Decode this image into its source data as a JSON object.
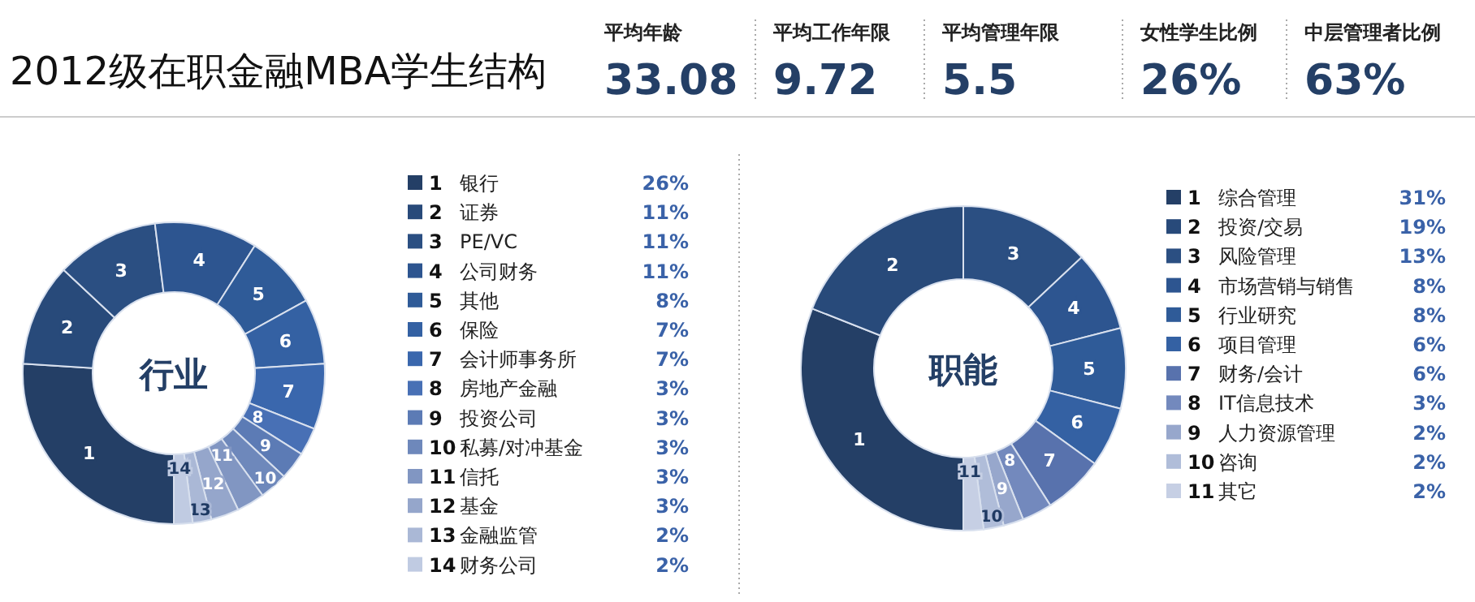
{
  "chart_data": [
    {
      "type": "other",
      "title": "2012级在职金融MBA学生结构",
      "categories": [
        "平均年龄",
        "平均工作年限",
        "平均管理年限",
        "女性学生比例",
        "中层管理者比例"
      ],
      "value_labels": [
        "33.08",
        "9.72",
        "5.5",
        "26%",
        "63%"
      ]
    },
    {
      "type": "donut",
      "title": "行业",
      "categories": [
        "银行",
        "证券",
        "PE/VC",
        "公司财务",
        "其他",
        "保险",
        "会计师事务所",
        "房地产金融",
        "投资公司",
        "私募/对冲基金",
        "信托",
        "基金",
        "金融监管",
        "财务公司"
      ],
      "values": [
        26,
        11,
        11,
        11,
        8,
        7,
        7,
        3,
        3,
        3,
        3,
        3,
        2,
        2
      ],
      "value_labels": [
        "26%",
        "11%",
        "11%",
        "11%",
        "8%",
        "7%",
        "7%",
        "3%",
        "3%",
        "3%",
        "3%",
        "3%",
        "2%",
        "2%"
      ],
      "colors": [
        "#243f66",
        "#284a7a",
        "#2b4f82",
        "#2d5590",
        "#2f5b98",
        "#3461a3",
        "#3a67ad",
        "#4870b5",
        "#5c7bb5",
        "#6e88bb",
        "#8196c2",
        "#95a6cb",
        "#aab8d6",
        "#c0cbe2"
      ],
      "legend": "right",
      "annotations": [
        {
          "text": "1",
          "x": "银行"
        },
        {
          "text": "2",
          "x": "证券"
        },
        {
          "text": "3",
          "x": "PE/VC"
        },
        {
          "text": "4",
          "x": "公司财务"
        },
        {
          "text": "5",
          "x": "其他"
        },
        {
          "text": "6",
          "x": "保险"
        },
        {
          "text": "7",
          "x": "会计师事务所"
        },
        {
          "text": "8",
          "x": "房地产金融"
        },
        {
          "text": "9",
          "x": "投资公司"
        },
        {
          "text": "10",
          "x": "私募/对冲基金"
        },
        {
          "text": "11",
          "x": "信托"
        },
        {
          "text": "12",
          "x": "基金"
        },
        {
          "text": "13",
          "x": "金融监管"
        },
        {
          "text": "14",
          "x": "财务公司"
        }
      ]
    },
    {
      "type": "donut",
      "title": "职能",
      "categories": [
        "综合管理",
        "投资/交易",
        "风险管理",
        "市场营销与销售",
        "行业研究",
        "项目管理",
        "财务/会计",
        "IT信息技术",
        "人力资源管理",
        "咨询",
        "其它"
      ],
      "values": [
        31,
        19,
        13,
        8,
        8,
        6,
        6,
        3,
        2,
        2,
        2
      ],
      "value_labels": [
        "31%",
        "19%",
        "13%",
        "8%",
        "8%",
        "6%",
        "6%",
        "3%",
        "2%",
        "2%",
        "2%"
      ],
      "colors": [
        "#243f66",
        "#284a7a",
        "#2b4f82",
        "#2d5590",
        "#2f5b98",
        "#3461a3",
        "#5872ad",
        "#7389bd",
        "#97a7cc",
        "#b0bdd9",
        "#c6cfe4"
      ],
      "legend": "right",
      "annotations": [
        {
          "text": "1",
          "x": "综合管理"
        },
        {
          "text": "2",
          "x": "投资/交易"
        },
        {
          "text": "3",
          "x": "风险管理"
        },
        {
          "text": "4",
          "x": "市场营销与销售"
        },
        {
          "text": "5",
          "x": "行业研究"
        },
        {
          "text": "6",
          "x": "项目管理"
        },
        {
          "text": "7",
          "x": "财务/会计"
        },
        {
          "text": "8",
          "x": "IT信息技术"
        },
        {
          "text": "9",
          "x": "人力资源管理"
        },
        {
          "text": "10",
          "x": "咨询"
        },
        {
          "text": "11",
          "x": "其它"
        }
      ]
    }
  ]
}
